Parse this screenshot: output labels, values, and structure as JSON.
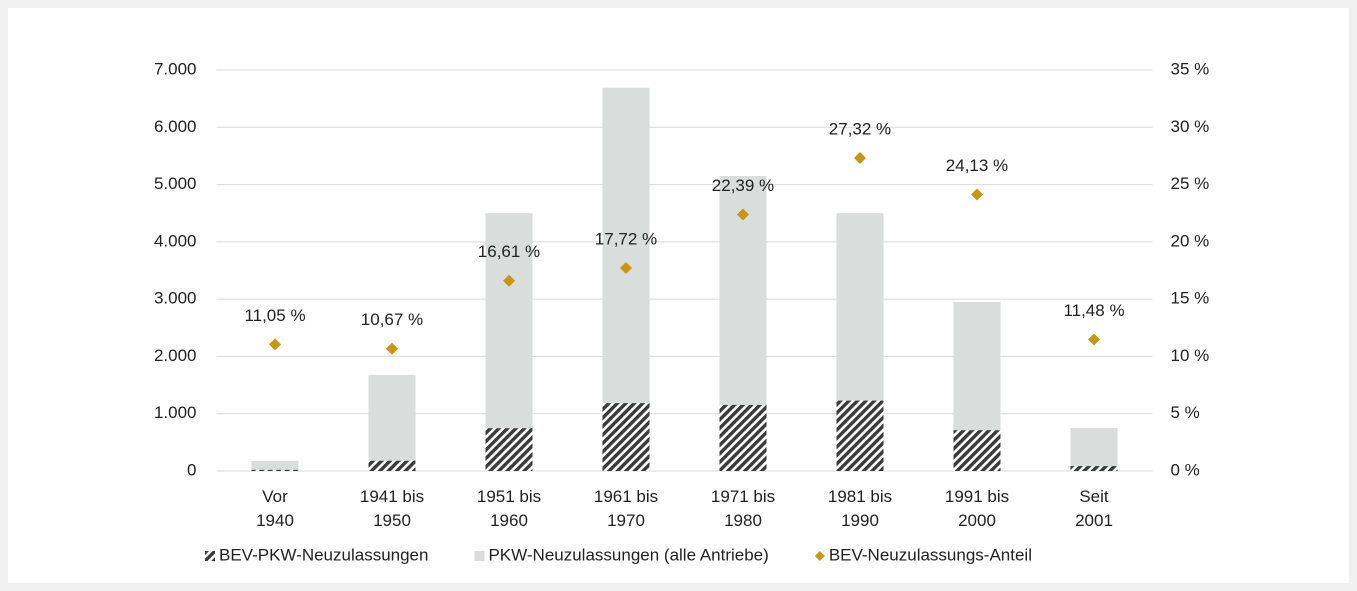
{
  "chart_data": {
    "type": "bar_line",
    "categories": [
      "Vor 1940",
      "1941 bis 1950",
      "1951 bis 1960",
      "1961 bis 1970",
      "1971 bis 1980",
      "1981 bis 1990",
      "1991 bis 2000",
      "Seit 2001"
    ],
    "series": [
      {
        "name": "BEV-PKW-Neuzulassungen",
        "color": "#3a3a3a",
        "pattern": "hatch",
        "values": [
          20,
          179,
          747,
          1185,
          1153,
          1229,
          712,
          86
        ]
      },
      {
        "name": "PKW-Neuzulassungen (alle Antriebe)",
        "color": "#d9dddb",
        "values": [
          175,
          1675,
          4500,
          6690,
          5150,
          4500,
          2950,
          750
        ]
      },
      {
        "name": "BEV-Neuzulassungs-Anteil",
        "color": "#c9970e",
        "axis": "y2",
        "marker": "diamond",
        "values": [
          11.05,
          10.67,
          16.61,
          17.72,
          22.39,
          27.32,
          24.13,
          11.48
        ],
        "value_labels": [
          "11,05 %",
          "10,67 %",
          "16,61 %",
          "17,72 %",
          "22,39 %",
          "27,32 %",
          "24,13 %",
          "11,48 %"
        ]
      }
    ],
    "ylim": [
      0,
      7000
    ],
    "yticks": [
      0,
      {
        "value": 1000,
        "label": "1.000"
      },
      {
        "value": 2000,
        "label": "2.000"
      },
      {
        "value": 3000,
        "label": "3.000"
      },
      {
        "value": 4000,
        "label": "4.000"
      },
      {
        "value": 5000,
        "label": "5.000"
      },
      {
        "value": 6000,
        "label": "6.000"
      },
      {
        "value": 7000,
        "label": "7.000"
      }
    ],
    "y2lim": [
      0,
      35
    ],
    "y2ticks": [
      {
        "value": 0,
        "label": "0 %"
      },
      {
        "value": 5,
        "label": "5 %"
      },
      {
        "value": 10,
        "label": "10 %"
      },
      {
        "value": 15,
        "label": "15 %"
      },
      {
        "value": 20,
        "label": "20 %"
      },
      {
        "value": 25,
        "label": "25 %"
      },
      {
        "value": 30,
        "label": "30 %"
      },
      {
        "value": 35,
        "label": "35 %"
      }
    ],
    "grid": true,
    "legend": "bottom"
  }
}
